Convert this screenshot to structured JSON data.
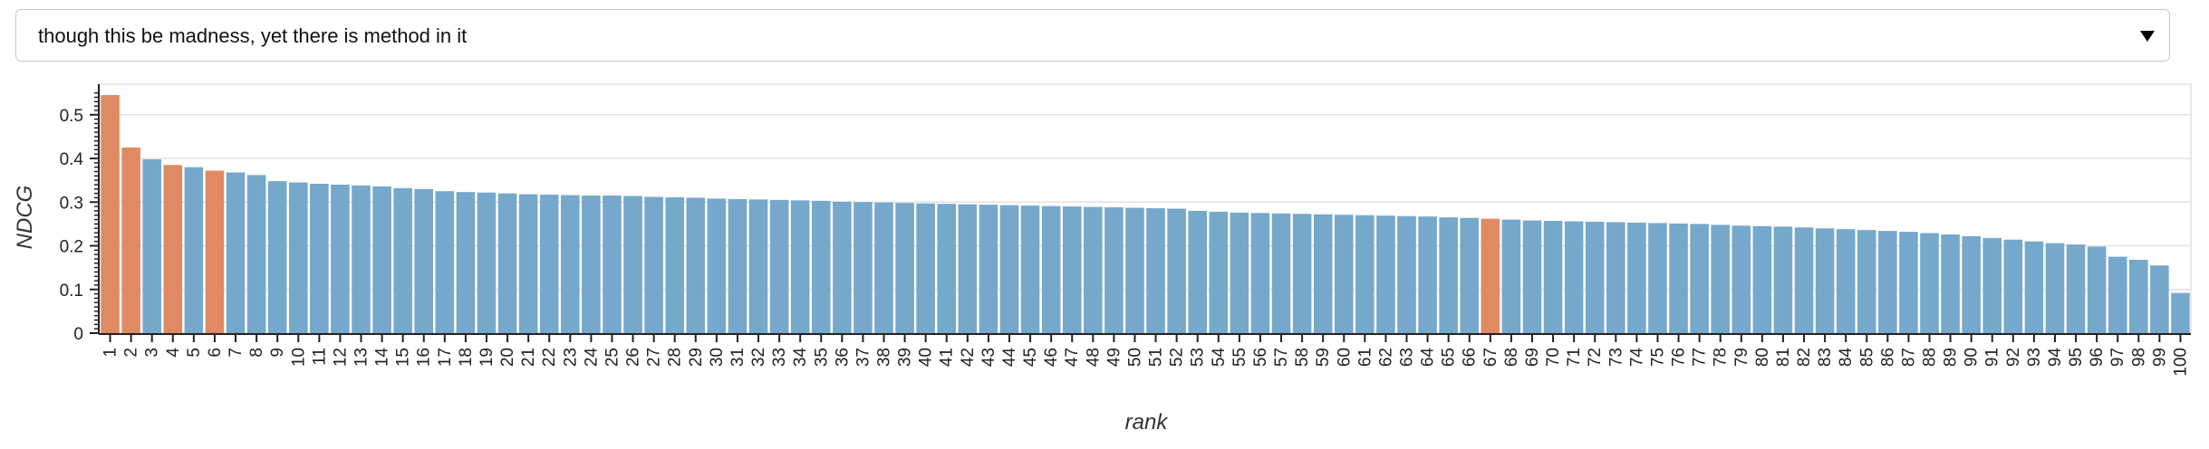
{
  "query_select": {
    "selected": "though this be madness, yet there is method in it"
  },
  "colors": {
    "default_bar": "#76a8cc",
    "highlight_bar": "#e08a64",
    "grid": "#e2e2e2",
    "axis": "#222222"
  },
  "chart_data": {
    "type": "bar",
    "xlabel": "rank",
    "ylabel": "NDCG",
    "ylim": [
      0,
      0.57
    ],
    "yticks": [
      0,
      0.1,
      0.2,
      0.3,
      0.4,
      0.5
    ],
    "grid": true,
    "categories": [
      "1",
      "2",
      "3",
      "4",
      "5",
      "6",
      "7",
      "8",
      "9",
      "10",
      "11",
      "12",
      "13",
      "14",
      "15",
      "16",
      "17",
      "18",
      "19",
      "20",
      "21",
      "22",
      "23",
      "24",
      "25",
      "26",
      "27",
      "28",
      "29",
      "30",
      "31",
      "32",
      "33",
      "34",
      "35",
      "36",
      "37",
      "38",
      "39",
      "40",
      "41",
      "42",
      "43",
      "44",
      "45",
      "46",
      "47",
      "48",
      "49",
      "50",
      "51",
      "52",
      "53",
      "54",
      "55",
      "56",
      "57",
      "58",
      "59",
      "60",
      "61",
      "62",
      "63",
      "64",
      "65",
      "66",
      "67",
      "68",
      "69",
      "70",
      "71",
      "72",
      "73",
      "74",
      "75",
      "76",
      "77",
      "78",
      "79",
      "80",
      "81",
      "82",
      "83",
      "84",
      "85",
      "86",
      "87",
      "88",
      "89",
      "90",
      "91",
      "92",
      "93",
      "94",
      "95",
      "96",
      "97",
      "98",
      "99",
      "100"
    ],
    "values": [
      0.545,
      0.425,
      0.398,
      0.385,
      0.38,
      0.372,
      0.368,
      0.362,
      0.348,
      0.345,
      0.342,
      0.34,
      0.338,
      0.336,
      0.332,
      0.33,
      0.325,
      0.323,
      0.322,
      0.32,
      0.318,
      0.317,
      0.316,
      0.315,
      0.315,
      0.314,
      0.312,
      0.311,
      0.31,
      0.308,
      0.307,
      0.306,
      0.305,
      0.304,
      0.303,
      0.301,
      0.3,
      0.299,
      0.298,
      0.297,
      0.296,
      0.295,
      0.294,
      0.293,
      0.292,
      0.291,
      0.29,
      0.289,
      0.288,
      0.287,
      0.286,
      0.285,
      0.28,
      0.278,
      0.276,
      0.275,
      0.274,
      0.273,
      0.272,
      0.271,
      0.27,
      0.269,
      0.268,
      0.267,
      0.265,
      0.264,
      0.262,
      0.26,
      0.258,
      0.257,
      0.256,
      0.255,
      0.254,
      0.253,
      0.252,
      0.251,
      0.25,
      0.248,
      0.246,
      0.245,
      0.244,
      0.242,
      0.24,
      0.238,
      0.236,
      0.234,
      0.232,
      0.229,
      0.226,
      0.222,
      0.218,
      0.214,
      0.21,
      0.206,
      0.203,
      0.198,
      0.175,
      0.168,
      0.155,
      0.092
    ],
    "highlighted": [
      "1",
      "2",
      "4",
      "6",
      "67"
    ]
  }
}
